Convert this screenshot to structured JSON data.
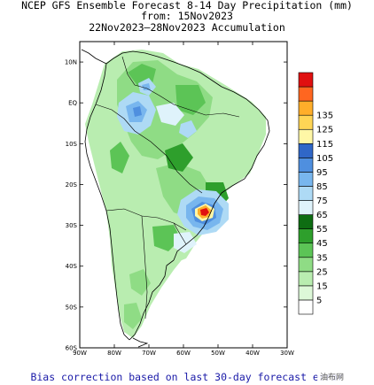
{
  "title": {
    "line1": "NCEP GFS Ensemble Forecast 8-14 Day Precipitation (mm)",
    "line2": "from: 15Nov2023",
    "line3": "22Nov2023—28Nov2023 Accumulation"
  },
  "axes": {
    "lat_labels": [
      "10N",
      "EQ",
      "10S",
      "20S",
      "30S",
      "40S",
      "50S",
      "60S"
    ],
    "lon_labels": [
      "90W",
      "80W",
      "70W",
      "60W",
      "50W",
      "40W",
      "30W"
    ],
    "lat_range": [
      -60,
      15
    ],
    "lon_range": [
      -90,
      -30
    ]
  },
  "colorbar": {
    "levels": [
      "5",
      "15",
      "25",
      "35",
      "45",
      "55",
      "65",
      "75",
      "85",
      "95",
      "105",
      "115",
      "125",
      "135"
    ],
    "colors": [
      "#ffffff",
      "#ddf8d8",
      "#b9edb0",
      "#8fdc85",
      "#5cc456",
      "#2e9f2c",
      "#0e6d13",
      "#dff3fb",
      "#aedaf5",
      "#78b6ee",
      "#4f8fdf",
      "#3067c7",
      "#fff7a6",
      "#ffd555",
      "#ffae2a",
      "#ff6620",
      "#e01010"
    ]
  },
  "footer": "Bias correction based on last 30-day forecast error",
  "watermark": "油布网",
  "colors": {
    "footer_text": "#1a1aa8",
    "peak": "#e01010"
  }
}
